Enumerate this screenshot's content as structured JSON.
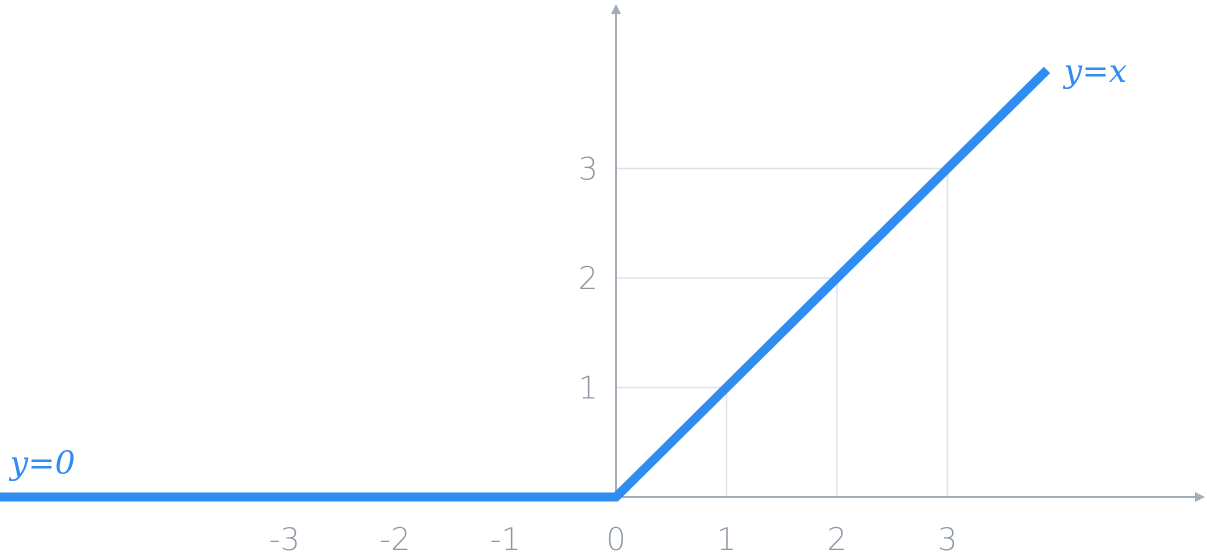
{
  "chart_data": {
    "type": "line",
    "title": "",
    "xlabel": "",
    "ylabel": "",
    "xlim": [
      -5.6,
      5.3
    ],
    "ylim": [
      0,
      4.4
    ],
    "x_ticks": [
      -3,
      -2,
      -1,
      0,
      1,
      2,
      3
    ],
    "y_ticks": [
      1,
      2,
      3
    ],
    "gridlines": "guide lines from the curve to the axes at x = 1, 2, 3",
    "series": [
      {
        "x": [
          -5.6,
          0,
          3.9
        ],
        "y": [
          0,
          0,
          3.9
        ]
      }
    ],
    "annotations": [
      {
        "text": "y=0",
        "near": "left end of the line, above the x-axis"
      },
      {
        "text": "y=x",
        "near": "upper right end of the line"
      }
    ]
  },
  "colors": {
    "line": "#2f8cf0",
    "axis": "#a3adb8",
    "grid": "#dde2e7",
    "tick_label": "#8d97a2",
    "annotation": "#2f8cf0"
  }
}
